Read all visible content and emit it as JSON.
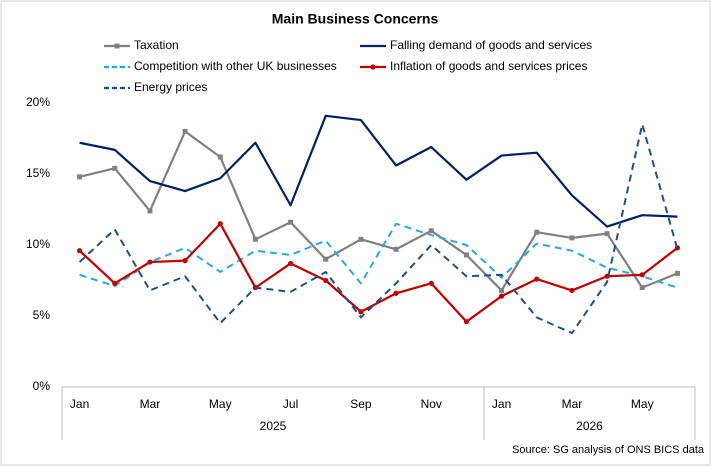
{
  "chart_data": {
    "type": "line",
    "title": "Main Business Concerns",
    "categories": [
      "Jan",
      null,
      "Mar",
      null,
      "May",
      null,
      "Jul",
      null,
      "Sep",
      null,
      "Nov",
      null,
      "Jan",
      null,
      "Mar",
      null,
      "May",
      null
    ],
    "groups": [
      {
        "name": "2025",
        "count": 12
      },
      {
        "name": "2026",
        "count": 6
      }
    ],
    "ylim": [
      0,
      20
    ],
    "yticks": [
      {
        "value": 0,
        "label": "0%"
      },
      {
        "value": 5,
        "label": "5%"
      },
      {
        "value": 10,
        "label": "10%"
      },
      {
        "value": 15,
        "label": "15%"
      },
      {
        "value": 20,
        "label": "20%"
      }
    ],
    "grid": false,
    "series": [
      {
        "name": "Taxation",
        "color": "#808080",
        "dash": false,
        "marker": "square",
        "values": [
          14.8,
          15.4,
          12.4,
          18.0,
          16.2,
          10.4,
          11.6,
          9.0,
          10.4,
          9.7,
          11.0,
          9.3,
          6.8,
          10.9,
          10.5,
          10.8,
          7.0,
          8.0
        ]
      },
      {
        "name": "Falling demand of goods and services",
        "color": "#002060",
        "dash": false,
        "marker": null,
        "values": [
          17.2,
          16.7,
          14.5,
          13.8,
          14.7,
          17.2,
          12.8,
          19.1,
          18.8,
          15.6,
          16.9,
          14.6,
          16.3,
          16.5,
          13.5,
          11.3,
          12.1,
          12.0
        ]
      },
      {
        "name": "Competition with other UK businesses",
        "color": "#29a8dc",
        "dash": true,
        "marker": null,
        "values": [
          7.9,
          7.1,
          8.8,
          9.8,
          8.1,
          9.6,
          9.3,
          10.3,
          7.3,
          11.5,
          10.7,
          10.0,
          7.7,
          10.1,
          9.6,
          8.4,
          7.8,
          7.0
        ]
      },
      {
        "name": "Inflation of goods and services prices",
        "color": "#c00000",
        "dash": false,
        "marker": "circle",
        "values": [
          9.6,
          7.3,
          8.8,
          8.9,
          11.5,
          7.0,
          8.7,
          7.5,
          5.3,
          6.6,
          7.3,
          4.6,
          6.4,
          7.6,
          6.8,
          7.8,
          7.9,
          9.8
        ]
      },
      {
        "name": "Energy prices",
        "color": "#1f4e8c",
        "dash": true,
        "marker": null,
        "values": [
          8.8,
          11.1,
          6.8,
          7.8,
          4.5,
          7.0,
          6.7,
          8.1,
          4.9,
          7.3,
          10.0,
          7.8,
          7.9,
          4.9,
          3.8,
          7.4,
          18.5,
          9.7
        ]
      }
    ],
    "source": "Source: SG analysis of ONS BICS data"
  }
}
